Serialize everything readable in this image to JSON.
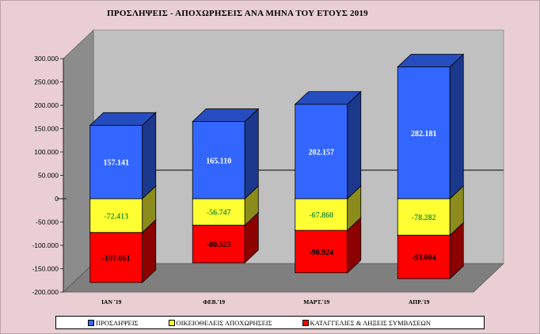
{
  "chart_data": {
    "type": "bar",
    "stacked": true,
    "three_d": true,
    "title": "ΠΡΟΣΛΗΨΕΙΣ - ΑΠΟΧΩΡΗΣΕΙΣ ΑΝΑ ΜΗΝΑ ΤΟΥ  ΕΤΟΥΣ 2019",
    "categories": [
      "ΙΑΝ '19",
      "ΦΕΒ.'19",
      "ΜΑΡΤ.'19",
      "ΑΠΡ.'19"
    ],
    "series": [
      {
        "name": "ΠΡΟΣΛΗΨΕΙΣ",
        "values": [
          157141,
          165110,
          202157,
          282181
        ],
        "labels": [
          "157.141",
          "165.110",
          "202.157",
          "282.181"
        ],
        "color": "#3366ff",
        "label_color": "#ffffff"
      },
      {
        "name": "ΟΙΚΕΙΟΘΕΛΕΙΣ ΑΠΟΧΩΡΗΣΕΙΣ",
        "values": [
          -72413,
          -56747,
          -67860,
          -78282
        ],
        "labels": [
          "-72.413",
          "-56.747",
          "-67.860",
          "-78.282"
        ],
        "color": "#ffff33",
        "label_color": "#339933"
      },
      {
        "name": "ΚΑΤΑΓΓΕΛΙΕΣ & ΛΗΞΕΙΣ ΣΥΜΒΑΣΕΩΝ",
        "values": [
          -107061,
          -80523,
          -90924,
          -93004
        ],
        "labels": [
          "-107.061",
          "-80.523",
          "-90.924",
          "-93.004"
        ],
        "color": "#ff0000",
        "label_color": "#000000"
      }
    ],
    "ylim": [
      -200000,
      300000
    ],
    "yticks": [
      300000,
      250000,
      200000,
      150000,
      100000,
      50000,
      0,
      -50000,
      -100000,
      -150000,
      -200000
    ],
    "ytick_labels": [
      "300.000",
      "250.000",
      "200.000",
      "150.000",
      "100.000",
      "50.000",
      "0",
      "-50.000",
      "-100.000",
      "-150.000",
      "-200.000"
    ],
    "grid": false,
    "legend_position": "bottom",
    "colors": {
      "background": "#e9cfd3",
      "plot_wall": "#c0c0c0",
      "floor": "#808080"
    }
  }
}
